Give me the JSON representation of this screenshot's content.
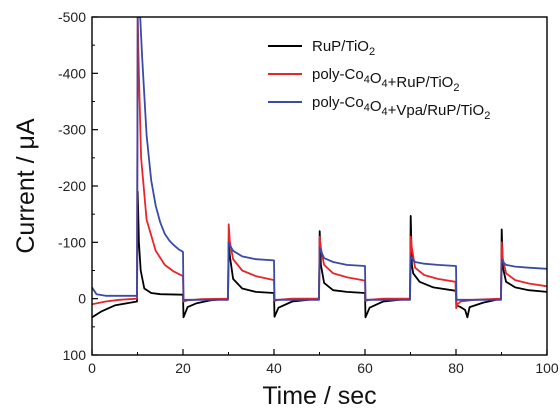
{
  "chart_data": {
    "type": "line",
    "title": "",
    "xlabel": "Time / sec",
    "ylabel": "Current / μA",
    "xlim": [
      0,
      100
    ],
    "ylim": [
      -500,
      100
    ],
    "y_axis_inverted": true,
    "grid": false,
    "legend_position": "top-right",
    "x_ticks": [
      0,
      20,
      40,
      60,
      80,
      100
    ],
    "x_tick_labels": [
      "0",
      "20",
      "40",
      "60",
      "80",
      "100"
    ],
    "y_ticks": [
      -500,
      -400,
      -300,
      -200,
      -100,
      0,
      100
    ],
    "y_tick_labels": [
      "-500",
      "-400",
      "-300",
      "-200",
      "-100",
      "0",
      "100"
    ],
    "series": [
      {
        "name": "RuP/TiO2",
        "legend_parts": [
          {
            "t": "RuP/TiO"
          },
          {
            "t": "2",
            "sub": true
          }
        ],
        "color": "#000000",
        "x": [
          0,
          2,
          5,
          9.9,
          10.05,
          10.3,
          10.7,
          11.5,
          13,
          15,
          20,
          20.1,
          21,
          23,
          26,
          29.9,
          30.05,
          30.3,
          31,
          33,
          36,
          40,
          40.1,
          41,
          44,
          49.9,
          50.05,
          50.3,
          51,
          53,
          56,
          60,
          60.1,
          61,
          64,
          69.9,
          70.05,
          70.3,
          70.6,
          72,
          75,
          80,
          80.1,
          81,
          82,
          82.5,
          83,
          86,
          89.9,
          90.05,
          90.3,
          91,
          93,
          96,
          100
        ],
        "y": [
          33,
          23,
          12,
          5,
          -190,
          -100,
          -50,
          -18,
          -10,
          -8,
          -7,
          33,
          15,
          8,
          3,
          0,
          -100,
          -75,
          -35,
          -18,
          -12,
          -10,
          32,
          16,
          5,
          0,
          -120,
          -60,
          -28,
          -15,
          -12,
          -10,
          33,
          16,
          5,
          0,
          -147,
          -60,
          -45,
          -30,
          -20,
          -14,
          12,
          15,
          20,
          33,
          15,
          7,
          0,
          -123,
          -55,
          -30,
          -20,
          -15,
          -12
        ]
      },
      {
        "name": "poly-Co4O4+RuP/TiO2",
        "legend_parts": [
          {
            "t": "poly-Co"
          },
          {
            "t": "4",
            "sub": true
          },
          {
            "t": "O"
          },
          {
            "t": "4",
            "sub": true
          },
          {
            "t": "+RuP/TiO"
          },
          {
            "t": "2",
            "sub": true
          }
        ],
        "color": "#e8262a",
        "x": [
          0,
          3,
          6,
          9.9,
          10.05,
          10.3,
          10.8,
          12,
          14,
          16,
          18,
          20,
          20.1,
          21,
          24,
          29.9,
          30.05,
          30.3,
          31,
          33,
          36,
          40,
          40.1,
          41,
          44,
          49.9,
          50.05,
          50.3,
          51,
          53,
          56,
          60,
          60.1,
          61,
          64,
          69.9,
          70.05,
          70.3,
          71,
          73,
          76,
          79.9,
          80.05,
          80.3,
          81,
          84,
          89.9,
          90.05,
          90.3,
          91,
          93,
          96,
          100
        ],
        "y": [
          10,
          5,
          2,
          0,
          -500,
          -400,
          -250,
          -140,
          -85,
          -60,
          -48,
          -40,
          5,
          3,
          1,
          0,
          -132,
          -100,
          -70,
          -50,
          -40,
          -33,
          4,
          2,
          0,
          0,
          -110,
          -90,
          -60,
          -45,
          -38,
          -32,
          4,
          2,
          0,
          0,
          -110,
          -90,
          -55,
          -42,
          -35,
          -30,
          17,
          10,
          5,
          2,
          0,
          -100,
          -70,
          -45,
          -33,
          -27,
          -22
        ]
      },
      {
        "name": "poly-Co4O4+Vpa/RuP/TiO2",
        "legend_parts": [
          {
            "t": "poly-Co"
          },
          {
            "t": "4",
            "sub": true
          },
          {
            "t": "O"
          },
          {
            "t": "4",
            "sub": true
          },
          {
            "t": "+Vpa/RuP/TiO"
          },
          {
            "t": "2",
            "sub": true
          }
        ],
        "color": "#3a4aa6",
        "x": [
          0,
          1,
          3,
          6,
          9.9,
          10.05,
          10.3,
          10.6,
          11,
          12,
          13,
          14,
          15,
          16,
          17,
          18,
          19,
          20,
          20.1,
          21,
          25,
          29.9,
          30.05,
          30.3,
          31,
          33,
          36,
          40,
          40.1,
          41,
          45,
          49.9,
          50.05,
          50.3,
          51,
          53,
          56,
          60,
          60.1,
          61,
          65,
          69.9,
          70.05,
          70.3,
          71,
          73,
          76,
          80,
          80.1,
          81,
          85,
          89.9,
          90.05,
          90.3,
          91,
          93,
          96,
          100
        ],
        "y": [
          -20,
          -8,
          -5,
          -5,
          -5,
          -500,
          -500,
          -500,
          -430,
          -290,
          -210,
          -165,
          -135,
          -115,
          -103,
          -95,
          -88,
          -83,
          2,
          2,
          2,
          2,
          -100,
          -95,
          -85,
          -75,
          -70,
          -68,
          2,
          2,
          2,
          2,
          -90,
          -85,
          -72,
          -65,
          -60,
          -58,
          2,
          2,
          2,
          2,
          -75,
          -72,
          -65,
          -62,
          -60,
          -58,
          2,
          2,
          2,
          2,
          -70,
          -65,
          -60,
          -57,
          -55,
          -53
        ]
      }
    ]
  }
}
